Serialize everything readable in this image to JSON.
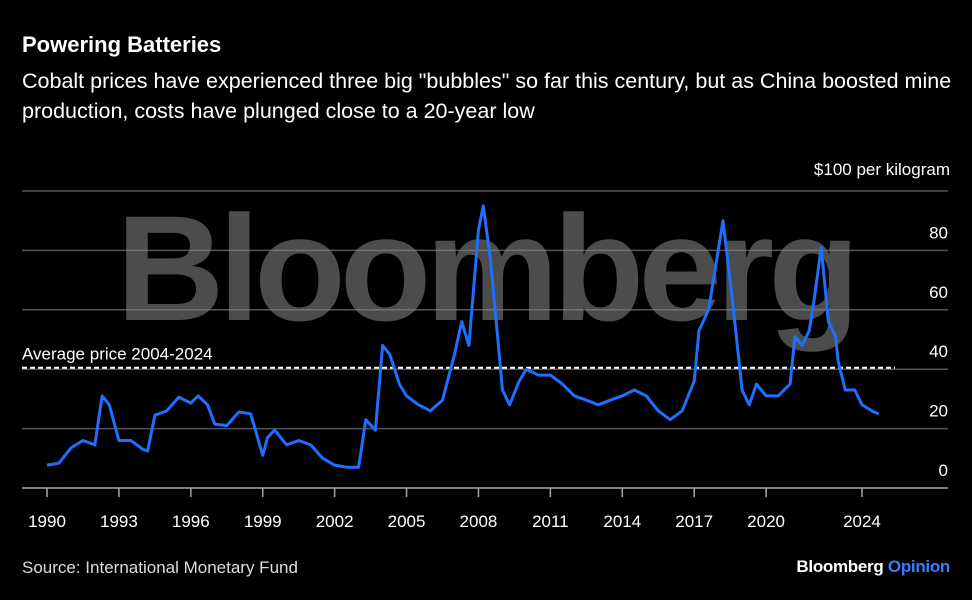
{
  "header": {
    "title": "Powering Batteries",
    "subtitle": "Cobalt prices have experienced three big \"bubbles\" so far this century, but as China boosted mine production, costs have plunged close to a 20-year low"
  },
  "footer": {
    "source": "Source: International Monetary Fund",
    "brand": "Bloomberg",
    "brand_suffix": "Opinion"
  },
  "watermark": "Bloomberg",
  "colors": {
    "line": "#1f6fff",
    "grid": "#555555",
    "avg": "#ffffff",
    "opinion": "#3b7dff"
  },
  "chart_data": {
    "type": "line",
    "title": "Powering Batteries",
    "ylabel": "$100 per kilogram",
    "ylim": [
      0,
      100
    ],
    "xlim": [
      1989.0,
      2028.0
    ],
    "yticks": [
      0,
      20,
      40,
      60,
      80
    ],
    "ytick_labels": [
      "0",
      "20",
      "40",
      "60",
      "80"
    ],
    "xticks": [
      1990,
      1993,
      1996,
      1999,
      2002,
      2005,
      2008,
      2011,
      2014,
      2017,
      2020,
      2024
    ],
    "xtick_labels": [
      "1990",
      "1993",
      "1996",
      "1999",
      "2002",
      "2005",
      "2008",
      "2011",
      "2014",
      "2017",
      "2020",
      "2024"
    ],
    "grid": true,
    "reference_line": {
      "label": "Average price 2004-2024",
      "value": 40.5
    },
    "series": [
      {
        "name": "Cobalt price",
        "x": [
          1990.0,
          1990.5,
          1991.0,
          1991.5,
          1992.0,
          1992.3,
          1992.6,
          1993.0,
          1993.5,
          1994.0,
          1994.2,
          1994.5,
          1995.0,
          1995.5,
          1996.0,
          1996.3,
          1996.7,
          1997.0,
          1997.5,
          1998.0,
          1998.5,
          1999.0,
          1999.2,
          1999.5,
          2000.0,
          2000.5,
          2001.0,
          2001.5,
          2002.0,
          2002.5,
          2003.0,
          2003.3,
          2003.7,
          2004.0,
          2004.3,
          2004.7,
          2005.0,
          2005.5,
          2006.0,
          2006.5,
          2007.0,
          2007.3,
          2007.6,
          2008.0,
          2008.2,
          2008.5,
          2008.8,
          2009.0,
          2009.3,
          2009.7,
          2010.0,
          2010.5,
          2011.0,
          2011.5,
          2012.0,
          2012.5,
          2013.0,
          2013.5,
          2014.0,
          2014.5,
          2015.0,
          2015.5,
          2016.0,
          2016.5,
          2017.0,
          2017.2,
          2017.6,
          2018.0,
          2018.2,
          2018.6,
          2019.0,
          2019.3,
          2019.6,
          2020.0,
          2020.5,
          2021.0,
          2021.2,
          2021.5,
          2021.8,
          2022.0,
          2022.3,
          2022.6,
          2022.9,
          2023.0,
          2023.3,
          2023.7,
          2024.0,
          2024.5,
          2024.7
        ],
        "values": [
          7.7,
          8.4,
          13.5,
          16,
          14.5,
          31,
          28,
          16,
          16,
          13,
          12.5,
          24.5,
          26,
          30.6,
          28.6,
          31,
          28,
          21.5,
          21,
          25.6,
          25,
          11,
          17,
          19.5,
          14.5,
          16,
          14.5,
          10,
          7.7,
          7,
          7,
          23,
          19.5,
          48,
          45,
          35,
          31,
          28,
          26,
          29.6,
          45,
          56,
          48,
          87,
          95,
          77,
          51,
          33,
          28,
          36,
          40,
          38,
          38,
          35,
          31,
          29.6,
          28,
          29.6,
          31,
          33,
          31,
          26,
          23,
          26,
          36,
          53,
          60,
          80,
          90,
          63,
          33,
          28,
          35,
          31,
          31,
          35,
          51,
          48,
          53,
          63,
          81,
          56,
          51,
          43,
          33,
          33,
          28,
          25.6,
          25
        ]
      }
    ]
  }
}
